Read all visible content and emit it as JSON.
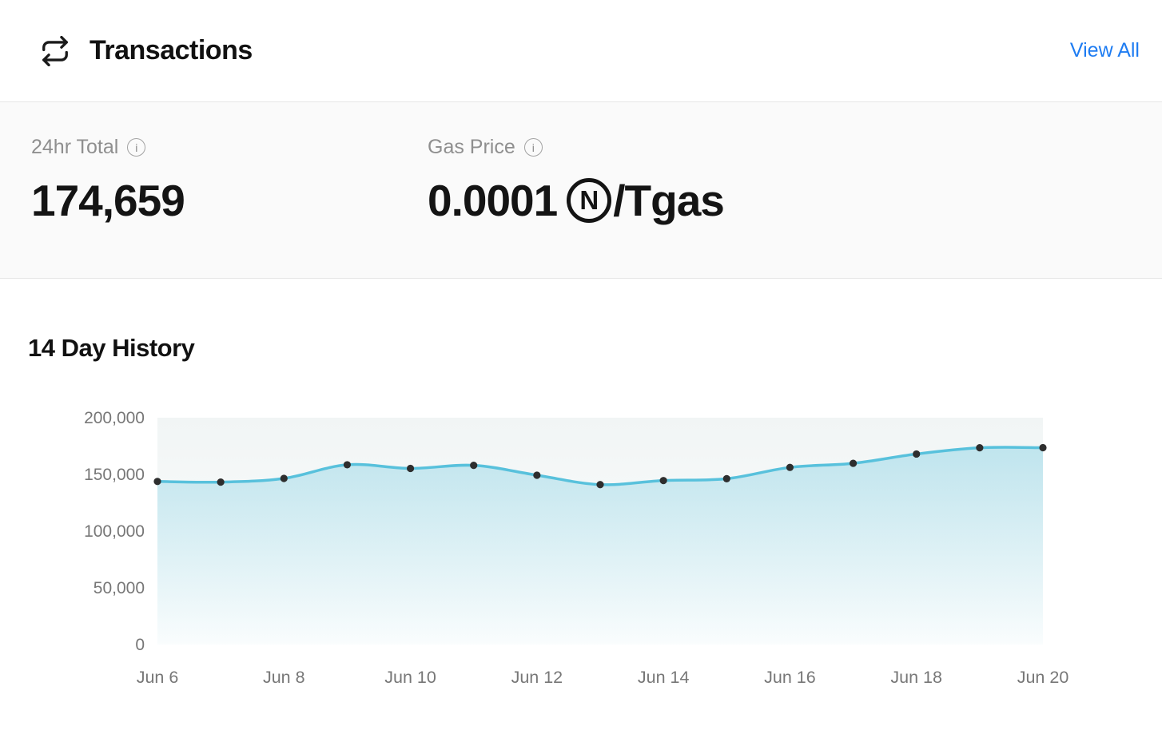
{
  "header": {
    "title": "Transactions",
    "view_all_label": "View All"
  },
  "icons": {
    "info_glyph": "i"
  },
  "stats": {
    "total": {
      "label": "24hr Total",
      "value": "174,659"
    },
    "gas_price": {
      "label": "Gas Price",
      "amount": "0.0001",
      "currency_symbol": "N",
      "unit": "/Tgas"
    }
  },
  "history": {
    "title": "14 Day History"
  },
  "colors": {
    "accent_blue": "#1E7CF2",
    "line": "#58C1DC",
    "dot": "#2E2E2E",
    "axis_label": "#777777",
    "plot_bg_top": "#F1F5F5",
    "plot_bg_bottom": "#FDFEFE"
  },
  "chart_data": {
    "type": "area",
    "title": "14 Day History",
    "xlabel": "",
    "ylabel": "",
    "x": [
      "Jun 6",
      "Jun 7",
      "Jun 8",
      "Jun 9",
      "Jun 10",
      "Jun 11",
      "Jun 12",
      "Jun 13",
      "Jun 14",
      "Jun 15",
      "Jun 16",
      "Jun 17",
      "Jun 18",
      "Jun 19",
      "Jun 20"
    ],
    "values": [
      143800,
      143200,
      146500,
      158500,
      155300,
      158000,
      149300,
      141000,
      144600,
      146200,
      156200,
      159800,
      168000,
      173500,
      173600
    ],
    "ylim": [
      0,
      200000
    ],
    "yticks": [
      0,
      50000,
      100000,
      150000,
      200000
    ],
    "xtick_labels": [
      "Jun 6",
      "Jun 8",
      "Jun 10",
      "Jun 12",
      "Jun 14",
      "Jun 16",
      "Jun 18",
      "Jun 20"
    ],
    "grid": false,
    "legend": false
  }
}
